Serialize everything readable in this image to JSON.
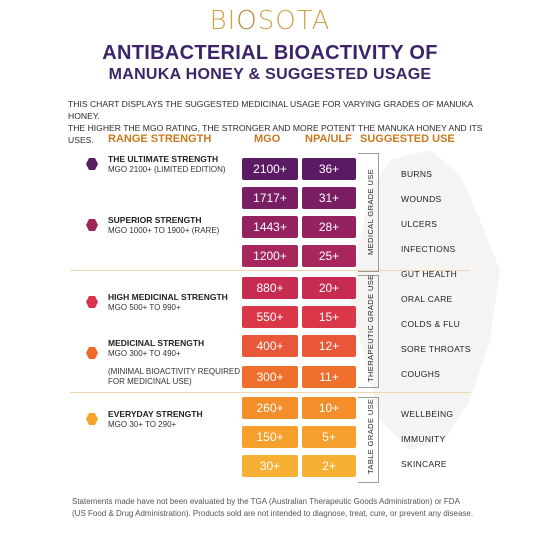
{
  "brand": {
    "pre": "BI",
    "o": "O",
    "post": "SOTA"
  },
  "title": {
    "line1": "ANTIBACTERIAL BIOACTIVITY OF",
    "line2": "MANUKA HONEY & SUGGESTED USAGE"
  },
  "intro": {
    "line1": "THIS CHART DISPLAYS THE SUGGESTED MEDICINAL USAGE FOR VARYING GRADES OF MANUKA HONEY.",
    "line2": "THE HIGHER THE MGO RATING, THE STRONGER AND MORE POTENT THE MANUKA HONEY AND ITS USES."
  },
  "headers": {
    "range": "RANGE STRENGTH",
    "mgo": "MGO",
    "npa": "NPA/ULF",
    "use": "SUGGESTED USE"
  },
  "strengths": [
    {
      "title": "THE ULTIMATE STRENGTH",
      "sub": "MGO 2100+ (LIMITED EDITION)",
      "color": "#5a1e63"
    },
    {
      "title": "SUPERIOR STRENGTH",
      "sub": "MGO 1000+ TO 1900+ (RARE)",
      "color": "#a0265a"
    },
    {
      "title": "HIGH MEDICINAL STRENGTH",
      "sub": "MGO 500+ TO 990+",
      "color": "#d8334a"
    },
    {
      "title": "MEDICINAL STRENGTH",
      "sub": "MGO 300+ TO 490+",
      "note1": "(MINIMAL BIOACTIVITY REQUIRED",
      "note2": "FOR MEDICINAL USE)",
      "color": "#ef6a2a"
    },
    {
      "title": "EVERYDAY STRENGTH",
      "sub": "MGO 30+ TO 290+",
      "color": "#f6a52c"
    }
  ],
  "rows": [
    {
      "mgo": "2100+",
      "npa": "36+",
      "color": "#5a1a64"
    },
    {
      "mgo": "1717+",
      "npa": "31+",
      "color": "#7a1e63"
    },
    {
      "mgo": "1443+",
      "npa": "28+",
      "color": "#93225f"
    },
    {
      "mgo": "1200+",
      "npa": "25+",
      "color": "#a7265b"
    },
    {
      "mgo": "880+",
      "npa": "20+",
      "color": "#c52c50"
    },
    {
      "mgo": "550+",
      "npa": "15+",
      "color": "#da3848"
    },
    {
      "mgo": "400+",
      "npa": "12+",
      "color": "#e85738"
    },
    {
      "mgo": "300+",
      "npa": "11+",
      "color": "#ef6f2c"
    },
    {
      "mgo": "260+",
      "npa": "10+",
      "color": "#f48e2a"
    },
    {
      "mgo": "150+",
      "npa": "5+",
      "color": "#f5a02d"
    },
    {
      "mgo": "30+",
      "npa": "2+",
      "color": "#f6b033"
    }
  ],
  "grades": {
    "medical": "MEDICAL GRADE USE",
    "therapeutic": "THERAPEUTIC GRADE USE",
    "table": "TABLE GRADE USE"
  },
  "uses": [
    "BURNS",
    "WOUNDS",
    "ULCERS",
    "INFECTIONS",
    "GUT HEALTH",
    "ORAL CARE",
    "COLDS & FLU",
    "SORE THROATS",
    "COUGHS",
    "WELLBEING",
    "IMMUNITY",
    "SKINCARE"
  ],
  "footer": {
    "line1": "Statements made have not been evaluated by the TGA (Australian Therapeutic Goods Administration) or FDA",
    "line2": "(US Food & Drug Administration). Products sold are not intended to diagnose, treat, cure, or prevent any disease."
  }
}
